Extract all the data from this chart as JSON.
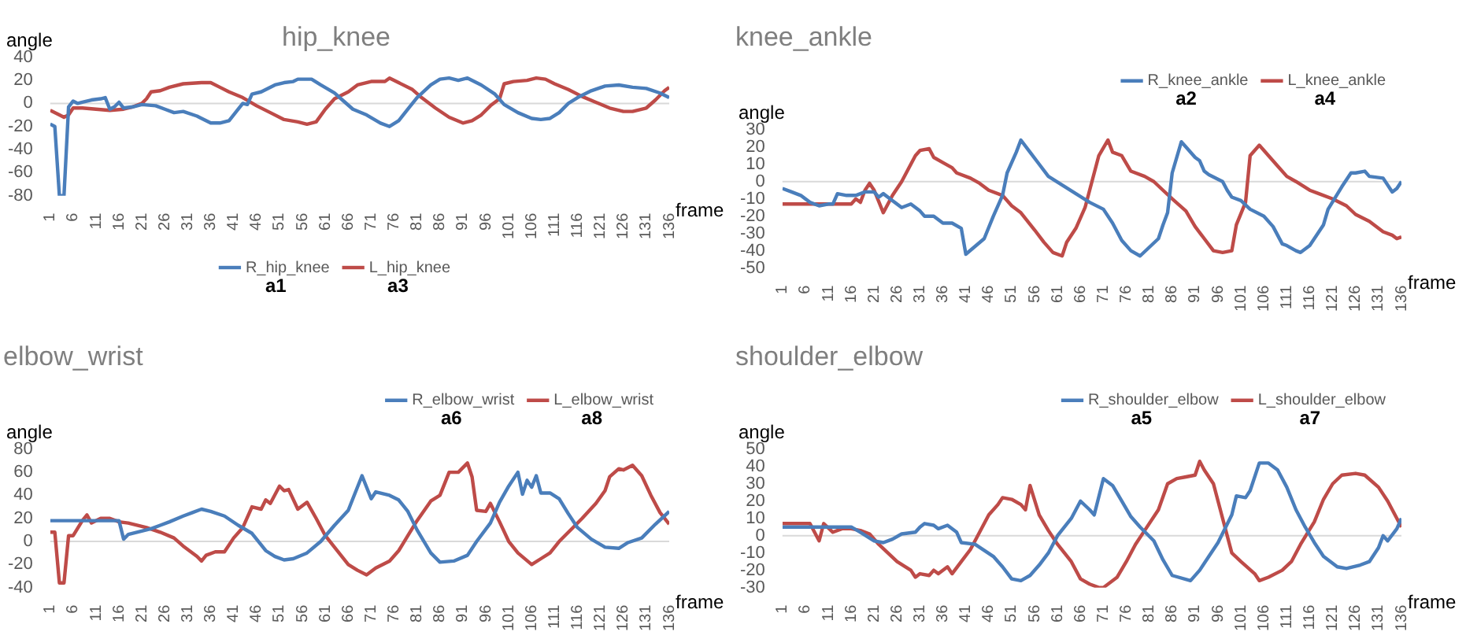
{
  "chart_data": [
    {
      "type": "line",
      "title": "hip_knee",
      "xlabel": "frame",
      "ylabel": "angle",
      "xlim": [
        1,
        136
      ],
      "xticks": [
        1,
        6,
        11,
        16,
        21,
        26,
        31,
        36,
        41,
        46,
        51,
        56,
        61,
        66,
        71,
        76,
        81,
        86,
        91,
        96,
        101,
        106,
        111,
        116,
        121,
        126,
        131,
        136
      ],
      "ylim": [
        -80,
        40
      ],
      "yticks": [
        -80,
        -60,
        -40,
        -20,
        0,
        20,
        40
      ],
      "grid": false,
      "ref_lines": [
        {
          "axis": "y",
          "value": 0,
          "color": "#d9d9d9"
        }
      ],
      "legend": "bottom",
      "marker": "none",
      "line_style": "solid",
      "annotations": [
        "a1",
        "a3"
      ],
      "series": [
        {
          "name": "R_hip_knee",
          "color": "#4a7ebb",
          "x": [
            1,
            2,
            3,
            4,
            5,
            6,
            7,
            8,
            10,
            12,
            13,
            14,
            15,
            16,
            17,
            19,
            21,
            24,
            26,
            28,
            30,
            33,
            36,
            38,
            40,
            42,
            43,
            44,
            45,
            47,
            50,
            52,
            54,
            55,
            58,
            60,
            63,
            65,
            67,
            70,
            73,
            75,
            77,
            79,
            81,
            84,
            86,
            88,
            90,
            92,
            95,
            98,
            100,
            103,
            106,
            108,
            110,
            112,
            114,
            116,
            119,
            122,
            125,
            128,
            131,
            134,
            136
          ],
          "values": [
            -18,
            -20,
            -80,
            -80,
            -3,
            2,
            0,
            1,
            3,
            4,
            5,
            -5,
            -3,
            1,
            -4,
            -3,
            -1,
            -2,
            -5,
            -8,
            -7,
            -11,
            -17,
            -17,
            -15,
            -5,
            0,
            -1,
            8,
            10,
            16,
            18,
            19,
            21,
            21,
            16,
            9,
            2,
            -5,
            -10,
            -17,
            -20,
            -15,
            -5,
            5,
            16,
            21,
            22,
            20,
            22,
            16,
            8,
            -1,
            -8,
            -13,
            -14,
            -13,
            -8,
            0,
            5,
            11,
            15,
            16,
            14,
            13,
            9,
            5
          ]
        },
        {
          "name": "L_hip_knee",
          "color": "#be4b48",
          "x": [
            1,
            3,
            4,
            5,
            6,
            8,
            11,
            14,
            17,
            19,
            21,
            22,
            23,
            25,
            27,
            30,
            34,
            36,
            38,
            40,
            43,
            46,
            49,
            52,
            55,
            57,
            59,
            61,
            63,
            66,
            68,
            71,
            74,
            75,
            77,
            80,
            82,
            85,
            88,
            91,
            93,
            95,
            97,
            99,
            100,
            102,
            105,
            107,
            109,
            111,
            114,
            117,
            120,
            123,
            126,
            128,
            131,
            133,
            135,
            136
          ],
          "values": [
            -6,
            -10,
            -12,
            -10,
            -4,
            -4,
            -5,
            -6,
            -5,
            -3,
            0,
            4,
            10,
            11,
            14,
            17,
            18,
            18,
            14,
            10,
            5,
            -2,
            -8,
            -14,
            -16,
            -18,
            -16,
            -5,
            4,
            10,
            16,
            19,
            19,
            22,
            18,
            12,
            5,
            -4,
            -12,
            -17,
            -15,
            -10,
            -2,
            4,
            17,
            19,
            20,
            22,
            21,
            17,
            12,
            6,
            1,
            -4,
            -7,
            -7,
            -4,
            3,
            11,
            14
          ]
        }
      ]
    },
    {
      "type": "line",
      "title": "knee_ankle",
      "xlabel": "frame",
      "ylabel": "angle",
      "xlim": [
        1,
        136
      ],
      "xticks": [
        1,
        6,
        11,
        16,
        21,
        26,
        31,
        36,
        41,
        46,
        51,
        56,
        61,
        66,
        71,
        76,
        81,
        86,
        91,
        96,
        101,
        106,
        111,
        116,
        121,
        126,
        131,
        136
      ],
      "ylim": [
        -50,
        30
      ],
      "yticks": [
        -50,
        -40,
        -30,
        -20,
        -10,
        0,
        10,
        20,
        30
      ],
      "grid": false,
      "ref_lines": [
        {
          "axis": "y",
          "value": 0,
          "color": "#d9d9d9"
        }
      ],
      "legend": "top right",
      "marker": "none",
      "line_style": "solid",
      "annotations": [
        "a2",
        "a4"
      ],
      "series": [
        {
          "name": "R_knee_ankle",
          "color": "#4a7ebb",
          "x": [
            1,
            3,
            5,
            7,
            9,
            11,
            12,
            13,
            15,
            17,
            19,
            21,
            22,
            23,
            25,
            27,
            29,
            31,
            32,
            34,
            36,
            38,
            40,
            41,
            45,
            47,
            49,
            50,
            52,
            53,
            55,
            57,
            59,
            62,
            65,
            68,
            71,
            73,
            75,
            77,
            79,
            81,
            83,
            84,
            85,
            86,
            88,
            89,
            91,
            92,
            93,
            94,
            97,
            98,
            99,
            101,
            103,
            106,
            108,
            110,
            111,
            113,
            114,
            116,
            119,
            120,
            123,
            125,
            126,
            128,
            129,
            132,
            134,
            135,
            136
          ],
          "values": [
            -4,
            -6,
            -8,
            -12,
            -14,
            -13,
            -13,
            -7,
            -8,
            -8,
            -6,
            -6,
            -9,
            -7,
            -11,
            -15,
            -13,
            -17,
            -20,
            -20,
            -24,
            -24,
            -27,
            -42,
            -33,
            -20,
            -8,
            5,
            17,
            24,
            17,
            10,
            3,
            -2,
            -7,
            -12,
            -16,
            -24,
            -34,
            -40,
            -43,
            -38,
            -33,
            -25,
            -18,
            5,
            23,
            20,
            14,
            12,
            6,
            4,
            0,
            -5,
            -9,
            -11,
            -16,
            -20,
            -26,
            -36,
            -37,
            -40,
            -41,
            -37,
            -25,
            -16,
            -3,
            5,
            5,
            6,
            3,
            2,
            -6,
            -4,
            0
          ]
        },
        {
          "name": "L_knee_ankle",
          "color": "#be4b48",
          "x": [
            1,
            16,
            17,
            18,
            19,
            20,
            21,
            23,
            25,
            26,
            27,
            28,
            30,
            31,
            33,
            34,
            36,
            38,
            39,
            42,
            44,
            46,
            49,
            51,
            53,
            56,
            58,
            60,
            62,
            63,
            65,
            67,
            68,
            70,
            72,
            73,
            75,
            77,
            80,
            82,
            84,
            86,
            89,
            91,
            93,
            95,
            97,
            99,
            100,
            102,
            103,
            105,
            107,
            109,
            111,
            113,
            116,
            118,
            121,
            124,
            126,
            129,
            132,
            134,
            135,
            136
          ],
          "values": [
            -13,
            -13,
            -10,
            -12,
            -5,
            -1,
            -5,
            -18,
            -8,
            -4,
            0,
            5,
            15,
            18,
            19,
            14,
            11,
            8,
            5,
            2,
            -1,
            -5,
            -8,
            -14,
            -18,
            -28,
            -35,
            -41,
            -43,
            -35,
            -27,
            -15,
            -5,
            15,
            24,
            17,
            15,
            6,
            3,
            0,
            -5,
            -10,
            -17,
            -26,
            -33,
            -40,
            -41,
            -40,
            -25,
            -12,
            15,
            21,
            15,
            9,
            3,
            0,
            -5,
            -7,
            -10,
            -14,
            -19,
            -23,
            -29,
            -31,
            -33,
            -32
          ]
        }
      ]
    },
    {
      "type": "line",
      "title": "elbow_wrist",
      "xlabel": "frame",
      "ylabel": "angle",
      "xlim": [
        1,
        136
      ],
      "xticks": [
        1,
        6,
        11,
        16,
        21,
        26,
        31,
        36,
        41,
        46,
        51,
        56,
        61,
        66,
        71,
        76,
        81,
        86,
        91,
        96,
        101,
        106,
        111,
        116,
        121,
        126,
        131,
        136
      ],
      "ylim": [
        -40,
        80
      ],
      "yticks": [
        -40,
        -20,
        0,
        20,
        40,
        60,
        80
      ],
      "grid": false,
      "ref_lines": [
        {
          "axis": "y",
          "value": 0,
          "color": "#d9d9d9"
        }
      ],
      "legend": "top right",
      "marker": "none",
      "line_style": "solid",
      "annotations": [
        "a6",
        "a8"
      ],
      "series": [
        {
          "name": "R_elbow_wrist",
          "color": "#4a7ebb",
          "x": [
            1,
            16,
            17,
            18,
            23,
            25,
            27,
            30,
            32,
            34,
            36,
            39,
            42,
            45,
            48,
            50,
            52,
            54,
            57,
            60,
            63,
            66,
            67,
            69,
            71,
            72,
            75,
            77,
            79,
            81,
            84,
            86,
            89,
            92,
            94,
            97,
            99,
            101,
            103,
            104,
            105,
            106,
            107,
            108,
            110,
            112,
            114,
            116,
            119,
            122,
            125,
            127,
            130,
            133,
            136
          ],
          "values": [
            18,
            18,
            2,
            6,
            11,
            14,
            17,
            22,
            25,
            28,
            26,
            22,
            14,
            7,
            -8,
            -13,
            -16,
            -15,
            -10,
            0,
            14,
            27,
            37,
            57,
            37,
            43,
            40,
            36,
            26,
            10,
            -10,
            -18,
            -17,
            -12,
            0,
            16,
            34,
            48,
            60,
            41,
            53,
            47,
            57,
            42,
            42,
            37,
            24,
            12,
            2,
            -5,
            -6,
            -1,
            3,
            15,
            26
          ]
        },
        {
          "name": "L_elbow_wrist",
          "color": "#be4b48",
          "x": [
            1,
            2,
            3,
            4,
            5,
            6,
            8,
            9,
            10,
            12,
            14,
            16,
            18,
            22,
            25,
            28,
            30,
            33,
            34,
            35,
            37,
            39,
            41,
            43,
            45,
            47,
            48,
            49,
            51,
            52,
            53,
            55,
            57,
            59,
            61,
            63,
            66,
            68,
            70,
            72,
            75,
            77,
            79,
            81,
            84,
            86,
            88,
            90,
            92,
            93,
            94,
            96,
            97,
            99,
            101,
            103,
            106,
            108,
            110,
            112,
            115,
            117,
            120,
            122,
            123,
            125,
            126,
            128,
            130,
            132,
            134,
            136
          ],
          "values": [
            8,
            8,
            -36,
            -36,
            5,
            5,
            18,
            23,
            16,
            20,
            20,
            17,
            16,
            12,
            8,
            3,
            -4,
            -13,
            -17,
            -12,
            -9,
            -9,
            3,
            12,
            30,
            28,
            36,
            33,
            48,
            44,
            45,
            28,
            34,
            20,
            5,
            -5,
            -20,
            -25,
            -29,
            -23,
            -17,
            -8,
            5,
            18,
            35,
            40,
            60,
            60,
            68,
            56,
            27,
            26,
            33,
            17,
            0,
            -10,
            -20,
            -15,
            -10,
            0,
            12,
            20,
            33,
            44,
            56,
            63,
            62,
            66,
            57,
            40,
            25,
            15
          ]
        }
      ]
    },
    {
      "type": "line",
      "title": "shoulder_elbow",
      "xlabel": "frame",
      "ylabel": "angle",
      "xlim": [
        1,
        136
      ],
      "xticks": [
        1,
        6,
        11,
        16,
        21,
        26,
        31,
        36,
        41,
        46,
        51,
        56,
        61,
        66,
        71,
        76,
        81,
        86,
        91,
        96,
        101,
        106,
        111,
        116,
        121,
        126,
        131,
        136
      ],
      "ylim": [
        -30,
        50
      ],
      "yticks": [
        -30,
        -20,
        -10,
        0,
        10,
        20,
        30,
        40,
        50
      ],
      "grid": false,
      "ref_lines": [
        {
          "axis": "y",
          "value": 0,
          "color": "#d9d9d9"
        }
      ],
      "legend": "top right",
      "marker": "none",
      "line_style": "solid",
      "annotations": [
        "a5",
        "a7"
      ],
      "series": [
        {
          "name": "R_shoulder_elbow",
          "color": "#4a7ebb",
          "x": [
            1,
            16,
            18,
            21,
            23,
            25,
            27,
            30,
            31,
            32,
            34,
            35,
            37,
            39,
            40,
            43,
            47,
            49,
            51,
            53,
            55,
            57,
            59,
            61,
            64,
            66,
            68,
            69,
            71,
            73,
            75,
            77,
            79,
            82,
            84,
            86,
            90,
            92,
            94,
            96,
            99,
            100,
            102,
            103,
            105,
            107,
            109,
            111,
            113,
            115,
            117,
            119,
            122,
            124,
            127,
            129,
            131,
            132,
            133,
            135,
            136
          ],
          "values": [
            5,
            5,
            2,
            -3,
            -4,
            -2,
            1,
            2,
            5,
            7,
            6,
            4,
            6,
            2,
            -4,
            -5,
            -12,
            -18,
            -25,
            -26,
            -23,
            -17,
            -10,
            0,
            10,
            20,
            15,
            12,
            33,
            29,
            20,
            11,
            5,
            -3,
            -14,
            -23,
            -26,
            -20,
            -12,
            -4,
            12,
            23,
            22,
            26,
            42,
            42,
            38,
            28,
            15,
            5,
            -4,
            -12,
            -18,
            -19,
            -17,
            -15,
            -7,
            0,
            -3,
            4,
            10
          ]
        },
        {
          "name": "L_shoulder_elbow",
          "color": "#be4b48",
          "x": [
            1,
            5,
            7,
            9,
            10,
            12,
            14,
            16,
            18,
            20,
            22,
            24,
            26,
            29,
            30,
            31,
            33,
            34,
            35,
            37,
            38,
            40,
            42,
            44,
            46,
            48,
            49,
            51,
            53,
            54,
            55,
            57,
            59,
            61,
            64,
            66,
            68,
            70,
            71,
            74,
            76,
            78,
            80,
            83,
            85,
            87,
            89,
            91,
            92,
            93,
            95,
            97,
            99,
            101,
            104,
            105,
            107,
            110,
            112,
            114,
            117,
            119,
            121,
            123,
            126,
            128,
            131,
            133,
            135,
            136
          ],
          "values": [
            7,
            7,
            7,
            -3,
            7,
            2,
            4,
            4,
            3,
            1,
            -5,
            -10,
            -15,
            -20,
            -24,
            -22,
            -23,
            -20,
            -22,
            -18,
            -22,
            -15,
            -8,
            2,
            12,
            18,
            22,
            21,
            18,
            15,
            29,
            12,
            3,
            -5,
            -15,
            -25,
            -28,
            -30,
            -30,
            -24,
            -15,
            -5,
            3,
            15,
            30,
            33,
            34,
            35,
            43,
            38,
            30,
            10,
            -10,
            -15,
            -22,
            -26,
            -24,
            -20,
            -15,
            -5,
            8,
            21,
            30,
            35,
            36,
            35,
            28,
            20,
            10,
            5
          ]
        }
      ]
    }
  ]
}
